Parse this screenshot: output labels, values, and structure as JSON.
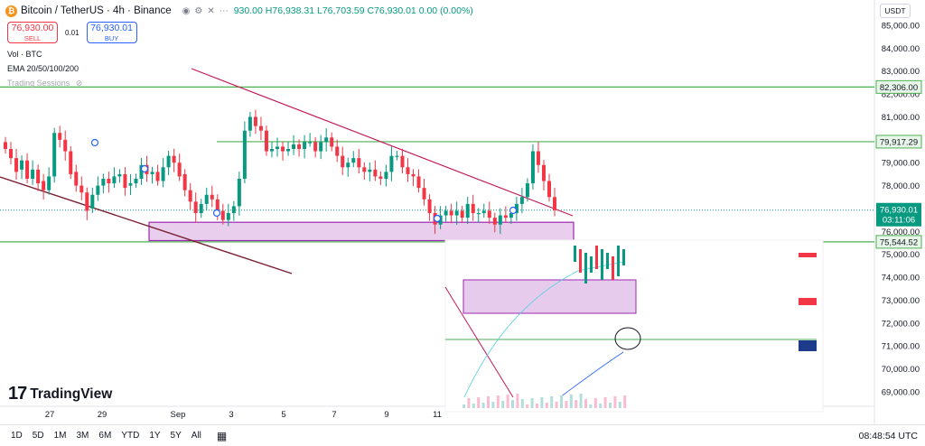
{
  "header": {
    "symbol": "Bitcoin / TetherUS · 4h · Binance",
    "coin_glyph": "₿",
    "ohlc_open": "930.00",
    "ohlc_high": "H76,938.31",
    "ohlc_low": "L76,703.59",
    "ohlc_close": "C76,930.01",
    "change": "0.00 (0.00%)"
  },
  "trade": {
    "sell_price": "76,930.00",
    "sell_label": "SELL",
    "spread": "0.01",
    "buy_price": "76,930.01",
    "buy_label": "BUY"
  },
  "indicators": {
    "volume": "Vol · BTC",
    "ema": "EMA 20/50/100/200",
    "sessions": "Trading Sessions"
  },
  "currency": "USDT",
  "brand": {
    "logo_mark": "17",
    "name": "TradingView"
  },
  "toolbar": {
    "timeframes": [
      "1D",
      "5D",
      "1M",
      "3M",
      "6M",
      "YTD",
      "1Y",
      "5Y",
      "All"
    ],
    "clock": "08:48:54 UTC"
  },
  "colors": {
    "up": "#089981",
    "down": "#f23645",
    "level_line": "#4caf50",
    "trendline": "#c2185b",
    "channel_line": "#7b1f33",
    "zone_fill": "#e1bee7",
    "zone_border": "#9c27b0"
  },
  "chart_data": {
    "type": "candlestick",
    "symbol": "BTCUSDT",
    "interval": "4h",
    "y_ticks": [
      85000,
      84000,
      83000,
      82000,
      81000,
      80000,
      79000,
      78000,
      77000,
      76000,
      75000,
      74000,
      73000,
      72000,
      71000,
      70000,
      69000
    ],
    "y_tick_labels": [
      "85,000.00",
      "84,000.00",
      "83,000.00",
      "82,000.00",
      "81,000.00",
      "80,000.00",
      "79,000.00",
      "78,000.00",
      "77,000.00",
      "76,000.00",
      "75,000.00",
      "74,000.00",
      "73,000.00",
      "72,000.00",
      "71,000.00",
      "70,000.00",
      "69,000.00"
    ],
    "x_tick_labels": [
      "27",
      "29",
      "Sep",
      "3",
      "5",
      "7",
      "9",
      "11"
    ],
    "price_levels": [
      {
        "value": 82306,
        "label": "82,306.00"
      },
      {
        "value": 79917.29,
        "label": "79,917.29"
      },
      {
        "value": 75544.52,
        "label": "75,544.52"
      }
    ],
    "last_price": {
      "value": 76930.01,
      "label": "76,930.01",
      "countdown": "03:11:06"
    },
    "demand_zone": {
      "top": 76400,
      "bottom": 75600
    },
    "candles_approx": [
      [
        79900,
        79600
      ],
      [
        79600,
        79200
      ],
      [
        79200,
        78600
      ],
      [
        78700,
        79100
      ],
      [
        79100,
        78300
      ],
      [
        78300,
        78700
      ],
      [
        78700,
        78100
      ],
      [
        78200,
        77800
      ],
      [
        77800,
        78400
      ],
      [
        78400,
        80300
      ],
      [
        80300,
        80000
      ],
      [
        80000,
        79500
      ],
      [
        79500,
        78500
      ],
      [
        78600,
        78000
      ],
      [
        78000,
        77700
      ],
      [
        77700,
        76900
      ],
      [
        77000,
        77600
      ],
      [
        77600,
        78000
      ],
      [
        78000,
        78300
      ],
      [
        78300,
        78100
      ],
      [
        78100,
        78400
      ],
      [
        78400,
        78500
      ],
      [
        78500,
        77900
      ],
      [
        78000,
        78100
      ],
      [
        78100,
        78300
      ],
      [
        78300,
        78900
      ],
      [
        78900,
        78500
      ],
      [
        78500,
        78600
      ],
      [
        78600,
        78200
      ],
      [
        78200,
        78800
      ],
      [
        78800,
        79300
      ],
      [
        79300,
        79000
      ],
      [
        79000,
        78400
      ],
      [
        78500,
        77800
      ],
      [
        77800,
        77300
      ],
      [
        77300,
        76800
      ],
      [
        76800,
        77200
      ],
      [
        77200,
        77600
      ],
      [
        77600,
        77400
      ],
      [
        77400,
        76900
      ],
      [
        76900,
        76500
      ],
      [
        76500,
        76800
      ],
      [
        76800,
        77100
      ],
      [
        77100,
        78300
      ],
      [
        78300,
        80400
      ],
      [
        80400,
        81000
      ],
      [
        81000,
        80600
      ],
      [
        80600,
        80400
      ],
      [
        80400,
        79500
      ],
      [
        79500,
        79600
      ],
      [
        79600,
        79700
      ],
      [
        79700,
        79500
      ],
      [
        79500,
        79600
      ],
      [
        79600,
        79800
      ],
      [
        79800,
        79600
      ],
      [
        79600,
        79900
      ],
      [
        79900,
        79900
      ],
      [
        79900,
        79500
      ],
      [
        79500,
        79900
      ],
      [
        79900,
        80100
      ],
      [
        80100,
        79700
      ],
      [
        79700,
        79300
      ],
      [
        79300,
        78800
      ],
      [
        78800,
        79000
      ],
      [
        79000,
        79200
      ],
      [
        79200,
        78800
      ],
      [
        78800,
        78600
      ],
      [
        78600,
        78700
      ],
      [
        78700,
        78400
      ],
      [
        78400,
        78300
      ],
      [
        78300,
        78600
      ],
      [
        78600,
        79300
      ],
      [
        79300,
        79300
      ],
      [
        79300,
        78800
      ],
      [
        78800,
        78500
      ],
      [
        78500,
        78400
      ],
      [
        78400,
        77900
      ],
      [
        77900,
        77400
      ],
      [
        77400,
        76800
      ],
      [
        76800,
        76300
      ],
      [
        76300,
        76700
      ],
      [
        76700,
        76900
      ],
      [
        76900,
        76700
      ],
      [
        76700,
        76900
      ],
      [
        76900,
        76600
      ],
      [
        76600,
        77200
      ],
      [
        77200,
        76800
      ],
      [
        76800,
        76800
      ],
      [
        76800,
        76900
      ],
      [
        76900,
        76600
      ],
      [
        76600,
        76300
      ],
      [
        76300,
        76700
      ],
      [
        76700,
        76600
      ],
      [
        76600,
        76800
      ],
      [
        76800,
        77200
      ],
      [
        77200,
        77500
      ],
      [
        77500,
        78100
      ],
      [
        78100,
        79500
      ],
      [
        79500,
        78900
      ],
      [
        78900,
        78200
      ],
      [
        78200,
        77500
      ],
      [
        77500,
        76930
      ]
    ]
  }
}
